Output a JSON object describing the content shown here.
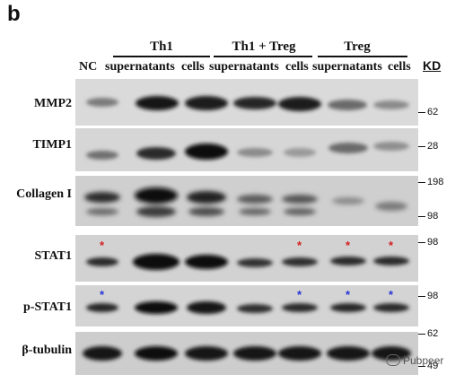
{
  "panel_label": "b",
  "groups": [
    {
      "label": "Th1"
    },
    {
      "label": "Th1 + Treg"
    },
    {
      "label": "Treg"
    }
  ],
  "lane_labels": [
    "NC",
    "supernatants",
    "cells",
    "supernatants",
    "cells",
    "supernatants",
    "cells"
  ],
  "kd_header": "KD",
  "rows": [
    {
      "label": "MMP2",
      "markers": [
        "62"
      ]
    },
    {
      "label": "TIMP1",
      "markers": [
        "28"
      ]
    },
    {
      "label": "Collagen I",
      "markers": [
        "198",
        "98"
      ]
    },
    {
      "label": "STAT1",
      "markers": [
        "98"
      ],
      "asterisks": {
        "lanes": [
          0,
          4,
          5,
          6
        ],
        "color": "#d42020"
      }
    },
    {
      "label": "p-STAT1",
      "markers": [
        "98"
      ],
      "asterisks": {
        "lanes": [
          0,
          4,
          5,
          6
        ],
        "color": "#2a35d6"
      }
    },
    {
      "label": "β-tubulin",
      "markers": [
        "62",
        "49"
      ]
    }
  ],
  "asterisk_symbol": "*",
  "watermark": "Pubpeer"
}
